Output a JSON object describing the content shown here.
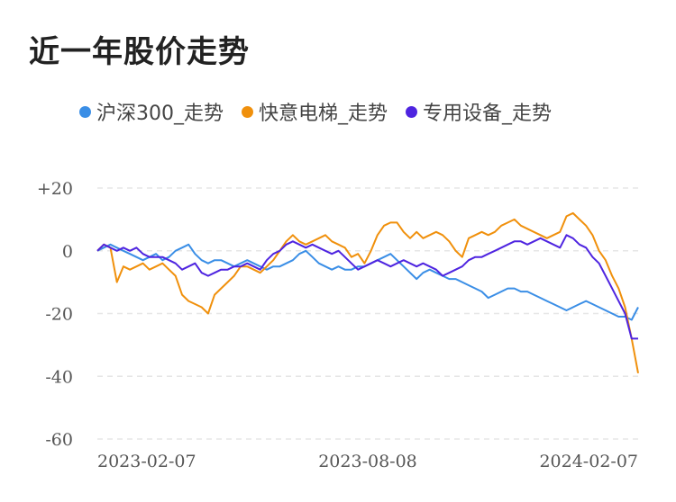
{
  "title": "近一年股价走势",
  "chart_data": {
    "type": "line",
    "title": "近一年股价走势",
    "xlabel": "",
    "ylabel": "",
    "ylim": [
      -60,
      20
    ],
    "yticks": [
      "+20",
      "0",
      "-20",
      "-40",
      "-60"
    ],
    "ytick_values": [
      20,
      0,
      -20,
      -40,
      -60
    ],
    "xticks": [
      "2023-02-07",
      "2023-08-08",
      "2024-02-07"
    ],
    "grid": true,
    "legend_position": "top",
    "series": [
      {
        "name": "沪深300_走势",
        "color": "#3a8ee6",
        "values": [
          0,
          1,
          2,
          1,
          0,
          -1,
          -2,
          -3,
          -2,
          -1,
          -3,
          -2,
          0,
          1,
          2,
          -1,
          -3,
          -4,
          -3,
          -3,
          -4,
          -5,
          -4,
          -3,
          -4,
          -5,
          -6,
          -5,
          -5,
          -4,
          -3,
          -1,
          0,
          -2,
          -4,
          -5,
          -6,
          -5,
          -6,
          -6,
          -5,
          -5,
          -4,
          -3,
          -2,
          -1,
          -3,
          -5,
          -7,
          -9,
          -7,
          -6,
          -7,
          -8,
          -9,
          -9,
          -10,
          -11,
          -12,
          -13,
          -15,
          -14,
          -13,
          -12,
          -12,
          -13,
          -13,
          -14,
          -15,
          -16,
          -17,
          -18,
          -19,
          -18,
          -17,
          -16,
          -17,
          -18,
          -19,
          -20,
          -21,
          -21,
          -22,
          -18
        ]
      },
      {
        "name": "快意电梯_走势",
        "color": "#f0900c",
        "values": [
          0,
          2,
          1,
          -10,
          -5,
          -6,
          -5,
          -4,
          -6,
          -5,
          -4,
          -6,
          -8,
          -14,
          -16,
          -17,
          -18,
          -20,
          -14,
          -12,
          -10,
          -8,
          -5,
          -5,
          -6,
          -7,
          -5,
          -3,
          0,
          3,
          5,
          3,
          2,
          3,
          4,
          5,
          3,
          2,
          1,
          -2,
          -1,
          -4,
          0,
          5,
          8,
          9,
          9,
          6,
          4,
          6,
          4,
          5,
          6,
          5,
          3,
          0,
          -2,
          4,
          5,
          6,
          5,
          6,
          8,
          9,
          10,
          8,
          7,
          6,
          5,
          4,
          5,
          6,
          11,
          12,
          10,
          8,
          5,
          0,
          -3,
          -8,
          -12,
          -18,
          -28,
          -39
        ]
      },
      {
        "name": "专用设备_走势",
        "color": "#4e24e0",
        "values": [
          0,
          2,
          1,
          0,
          1,
          0,
          1,
          -1,
          -2,
          -2,
          -2,
          -3,
          -4,
          -6,
          -5,
          -4,
          -7,
          -8,
          -7,
          -6,
          -6,
          -5,
          -5,
          -4,
          -5,
          -6,
          -3,
          -1,
          0,
          2,
          3,
          2,
          1,
          2,
          1,
          0,
          -1,
          0,
          -2,
          -4,
          -6,
          -5,
          -4,
          -3,
          -4,
          -5,
          -4,
          -3,
          -4,
          -5,
          -4,
          -5,
          -6,
          -8,
          -7,
          -6,
          -5,
          -3,
          -2,
          -2,
          -1,
          0,
          1,
          2,
          3,
          3,
          2,
          3,
          4,
          3,
          2,
          1,
          5,
          4,
          2,
          1,
          -2,
          -4,
          -8,
          -12,
          -16,
          -20,
          -28,
          -28
        ]
      }
    ]
  }
}
